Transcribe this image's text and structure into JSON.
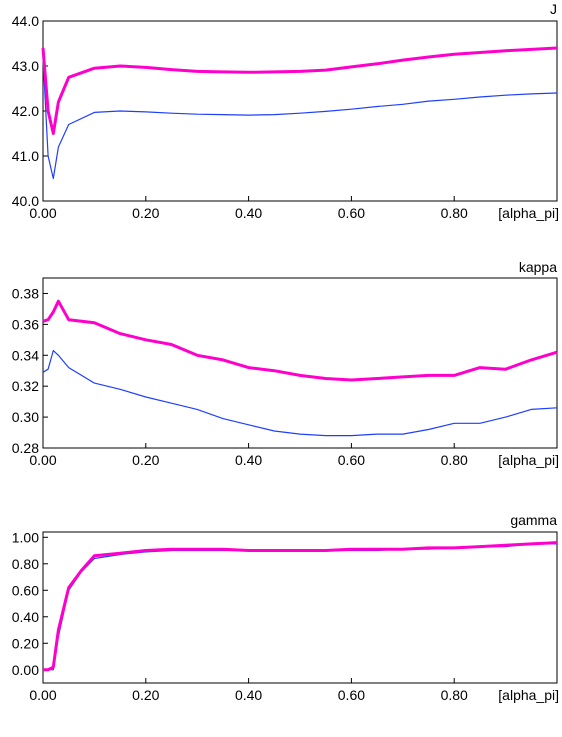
{
  "colors": {
    "series_magenta": "#ff00cc",
    "series_blue": "#1f3fff",
    "axis": "#000000"
  },
  "chart_data": [
    {
      "type": "line",
      "title": "J",
      "xlabel": "[alpha_pi]",
      "xlim": [
        0,
        1.0
      ],
      "ylim": [
        40.0,
        44.0
      ],
      "x_ticks": [
        "0.00",
        "0.20",
        "0.40",
        "0.60",
        "0.80"
      ],
      "y_ticks": [
        "40.0",
        "41.0",
        "42.0",
        "43.0",
        "44.0"
      ],
      "grid": false,
      "series": [
        {
          "color": "#ff00cc",
          "x": [
            0.0,
            0.01,
            0.02,
            0.03,
            0.05,
            0.1,
            0.15,
            0.2,
            0.25,
            0.3,
            0.35,
            0.4,
            0.45,
            0.5,
            0.55,
            0.6,
            0.65,
            0.7,
            0.75,
            0.8,
            0.85,
            0.9,
            0.95,
            1.0
          ],
          "y": [
            43.4,
            42.0,
            41.5,
            42.2,
            42.75,
            42.95,
            43.0,
            42.97,
            42.92,
            42.88,
            42.87,
            42.86,
            42.87,
            42.88,
            42.91,
            42.98,
            43.05,
            43.13,
            43.2,
            43.26,
            43.3,
            43.34,
            43.37,
            43.4
          ]
        },
        {
          "color": "#1f3fff",
          "x": [
            0.0,
            0.01,
            0.02,
            0.03,
            0.05,
            0.1,
            0.15,
            0.2,
            0.25,
            0.3,
            0.35,
            0.4,
            0.45,
            0.5,
            0.55,
            0.6,
            0.65,
            0.7,
            0.75,
            0.8,
            0.85,
            0.9,
            0.95,
            1.0
          ],
          "y": [
            43.2,
            41.0,
            40.5,
            41.2,
            41.7,
            41.97,
            42.0,
            41.98,
            41.95,
            41.93,
            41.92,
            41.91,
            41.92,
            41.95,
            41.99,
            42.04,
            42.1,
            42.15,
            42.22,
            42.26,
            42.31,
            42.35,
            42.38,
            42.4
          ]
        }
      ]
    },
    {
      "type": "line",
      "title": "kappa",
      "xlabel": "[alpha_pi]",
      "xlim": [
        0,
        1.0
      ],
      "ylim": [
        0.28,
        0.39
      ],
      "x_ticks": [
        "0.00",
        "0.20",
        "0.40",
        "0.60",
        "0.80"
      ],
      "y_ticks": [
        "0.28",
        "0.30",
        "0.32",
        "0.34",
        "0.36",
        "0.38"
      ],
      "grid": false,
      "series": [
        {
          "color": "#ff00cc",
          "x": [
            0.0,
            0.01,
            0.02,
            0.03,
            0.05,
            0.1,
            0.15,
            0.2,
            0.25,
            0.3,
            0.35,
            0.4,
            0.45,
            0.5,
            0.55,
            0.6,
            0.65,
            0.7,
            0.75,
            0.8,
            0.85,
            0.9,
            0.95,
            1.0
          ],
          "y": [
            0.362,
            0.363,
            0.368,
            0.375,
            0.363,
            0.361,
            0.354,
            0.35,
            0.347,
            0.34,
            0.337,
            0.332,
            0.33,
            0.327,
            0.325,
            0.324,
            0.325,
            0.326,
            0.327,
            0.327,
            0.332,
            0.331,
            0.337,
            0.342
          ]
        },
        {
          "color": "#1f3fff",
          "x": [
            0.0,
            0.01,
            0.02,
            0.03,
            0.05,
            0.1,
            0.15,
            0.2,
            0.25,
            0.3,
            0.35,
            0.4,
            0.45,
            0.5,
            0.55,
            0.6,
            0.65,
            0.7,
            0.75,
            0.8,
            0.85,
            0.9,
            0.95,
            1.0
          ],
          "y": [
            0.329,
            0.331,
            0.343,
            0.34,
            0.332,
            0.322,
            0.318,
            0.313,
            0.309,
            0.305,
            0.299,
            0.295,
            0.291,
            0.289,
            0.288,
            0.288,
            0.289,
            0.289,
            0.292,
            0.296,
            0.296,
            0.3,
            0.305,
            0.306
          ]
        }
      ]
    },
    {
      "type": "line",
      "title": "gamma",
      "xlabel": "[alpha_pi]",
      "xlim": [
        0,
        1.0
      ],
      "ylim": [
        -0.1,
        1.04
      ],
      "x_ticks": [
        "0.00",
        "0.20",
        "0.40",
        "0.60",
        "0.80"
      ],
      "y_ticks": [
        "0.00",
        "0.20",
        "0.40",
        "0.60",
        "0.80",
        "1.00"
      ],
      "grid": false,
      "series": [
        {
          "color": "#ff00cc",
          "x": [
            0.0,
            0.01,
            0.02,
            0.03,
            0.05,
            0.075,
            0.1,
            0.15,
            0.2,
            0.25,
            0.3,
            0.35,
            0.4,
            0.45,
            0.5,
            0.55,
            0.6,
            0.65,
            0.7,
            0.75,
            0.8,
            0.85,
            0.9,
            0.95,
            1.0
          ],
          "y": [
            0.0,
            0.0,
            0.02,
            0.3,
            0.62,
            0.75,
            0.86,
            0.88,
            0.9,
            0.91,
            0.91,
            0.91,
            0.9,
            0.9,
            0.9,
            0.9,
            0.91,
            0.91,
            0.91,
            0.92,
            0.92,
            0.93,
            0.94,
            0.95,
            0.96
          ]
        },
        {
          "color": "#1f3fff",
          "x": [
            0.0,
            0.01,
            0.02,
            0.03,
            0.05,
            0.075,
            0.1,
            0.15,
            0.2,
            0.25,
            0.3,
            0.35,
            0.4,
            0.45,
            0.5,
            0.55,
            0.6,
            0.65,
            0.7,
            0.75,
            0.8,
            0.85,
            0.9,
            0.95,
            1.0
          ],
          "y": [
            0.0,
            0.0,
            0.0,
            0.25,
            0.6,
            0.74,
            0.84,
            0.87,
            0.89,
            0.9,
            0.9,
            0.9,
            0.9,
            0.9,
            0.9,
            0.9,
            0.9,
            0.9,
            0.91,
            0.91,
            0.92,
            0.93,
            0.93,
            0.95,
            0.95
          ]
        }
      ]
    }
  ]
}
